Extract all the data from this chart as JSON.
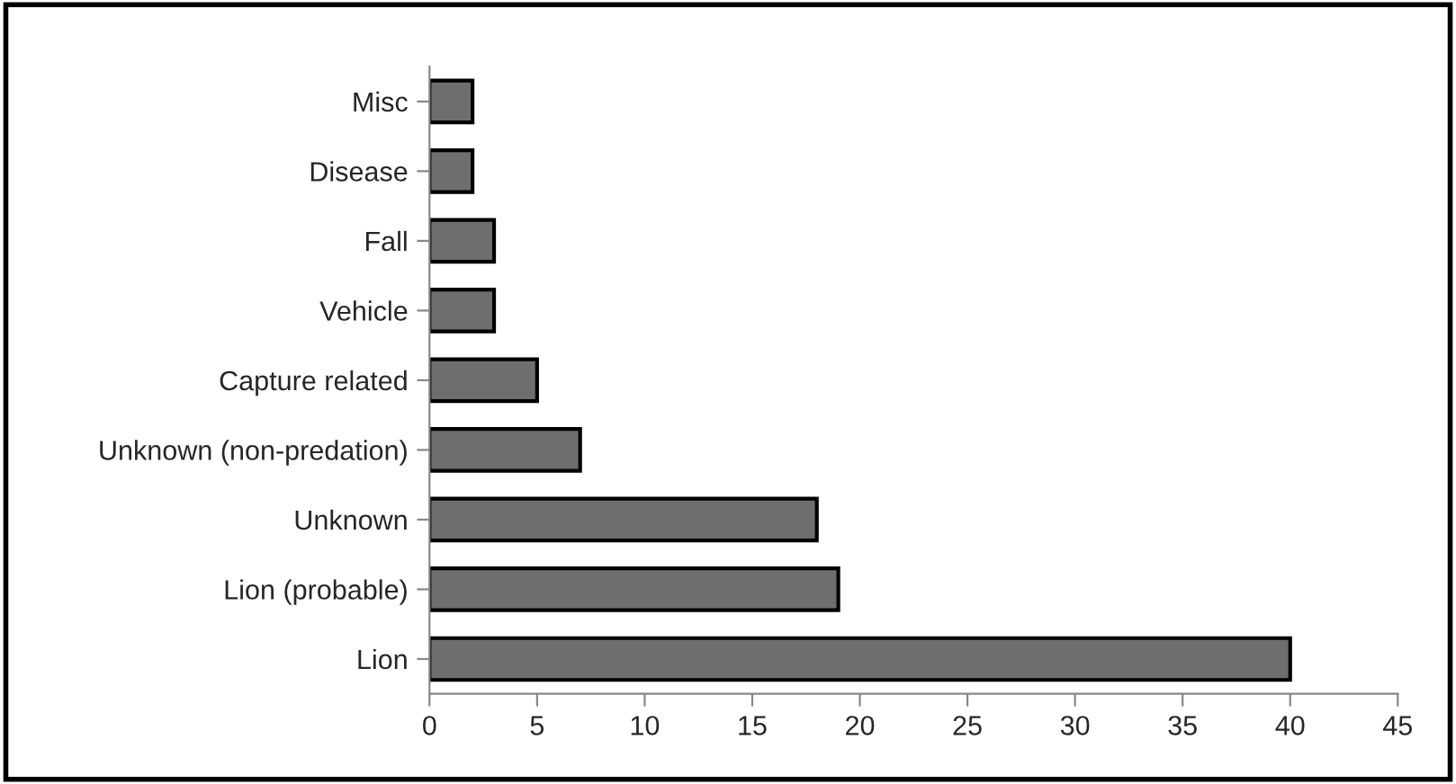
{
  "chart_data": {
    "type": "bar",
    "orientation": "horizontal",
    "categories": [
      "Misc",
      "Disease",
      "Fall",
      "Vehicle",
      "Capture related",
      "Unknown (non-predation)",
      "Unknown",
      "Lion (probable)",
      "Lion"
    ],
    "values": [
      2,
      2,
      3,
      3,
      5,
      7,
      18,
      19,
      40
    ],
    "color": "#6e6e6e",
    "xlim": [
      0,
      45
    ],
    "xticks": [
      0,
      5,
      10,
      15,
      20,
      25,
      30,
      35,
      40,
      45
    ],
    "grid": false
  }
}
